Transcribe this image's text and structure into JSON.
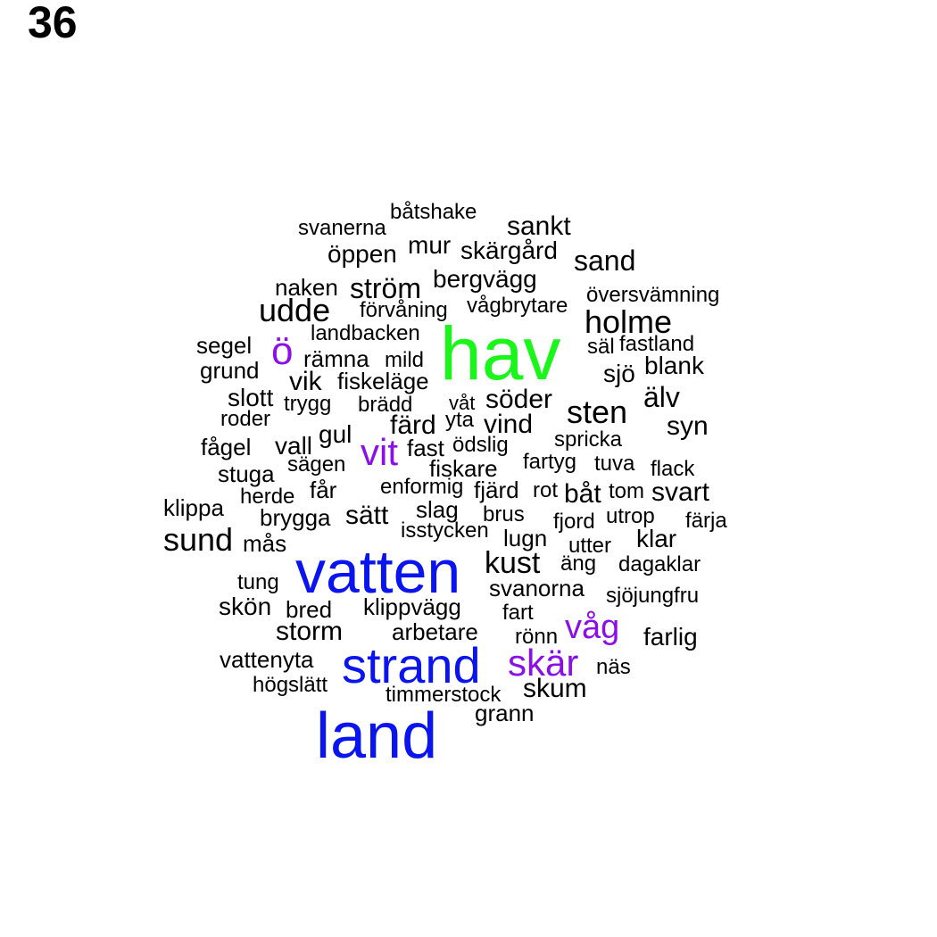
{
  "panel_number": "36",
  "colors": {
    "black": "#000000",
    "purple": "#8a0fe8",
    "blue": "#0a14ee",
    "green": "#1af51a"
  },
  "words": [
    {
      "text": "båtshake",
      "color": "black"
    },
    {
      "text": "svanerna",
      "color": "black"
    },
    {
      "text": "sankt",
      "color": "black"
    },
    {
      "text": "mur",
      "color": "black"
    },
    {
      "text": "öppen",
      "color": "black"
    },
    {
      "text": "skärgård",
      "color": "black"
    },
    {
      "text": "sand",
      "color": "black"
    },
    {
      "text": "bergvägg",
      "color": "black"
    },
    {
      "text": "naken",
      "color": "black"
    },
    {
      "text": "ström",
      "color": "black"
    },
    {
      "text": "översvämning",
      "color": "black"
    },
    {
      "text": "udde",
      "color": "black"
    },
    {
      "text": "förvåning",
      "color": "black"
    },
    {
      "text": "vågbrytare",
      "color": "black"
    },
    {
      "text": "holme",
      "color": "black"
    },
    {
      "text": "landbacken",
      "color": "black"
    },
    {
      "text": "hav",
      "color": "green"
    },
    {
      "text": "segel",
      "color": "black"
    },
    {
      "text": "ö",
      "color": "purple"
    },
    {
      "text": "säl",
      "color": "black"
    },
    {
      "text": "fastland",
      "color": "black"
    },
    {
      "text": "rämna",
      "color": "black"
    },
    {
      "text": "mild",
      "color": "black"
    },
    {
      "text": "grund",
      "color": "black"
    },
    {
      "text": "blank",
      "color": "black"
    },
    {
      "text": "sjö",
      "color": "black"
    },
    {
      "text": "vik",
      "color": "black"
    },
    {
      "text": "fiskeläge",
      "color": "black"
    },
    {
      "text": "slott",
      "color": "black"
    },
    {
      "text": "älv",
      "color": "black"
    },
    {
      "text": "söder",
      "color": "black"
    },
    {
      "text": "trygg",
      "color": "black"
    },
    {
      "text": "brädd",
      "color": "black"
    },
    {
      "text": "våt",
      "color": "black"
    },
    {
      "text": "sten",
      "color": "black"
    },
    {
      "text": "roder",
      "color": "black"
    },
    {
      "text": "yta",
      "color": "black"
    },
    {
      "text": "färd",
      "color": "black"
    },
    {
      "text": "vind",
      "color": "black"
    },
    {
      "text": "syn",
      "color": "black"
    },
    {
      "text": "gul",
      "color": "black"
    },
    {
      "text": "fågel",
      "color": "black"
    },
    {
      "text": "vall",
      "color": "black"
    },
    {
      "text": "vit",
      "color": "purple"
    },
    {
      "text": "fast",
      "color": "black"
    },
    {
      "text": "ödslig",
      "color": "black"
    },
    {
      "text": "spricka",
      "color": "black"
    },
    {
      "text": "sägen",
      "color": "black"
    },
    {
      "text": "stuga",
      "color": "black"
    },
    {
      "text": "fiskare",
      "color": "black"
    },
    {
      "text": "fartyg",
      "color": "black"
    },
    {
      "text": "tuva",
      "color": "black"
    },
    {
      "text": "flack",
      "color": "black"
    },
    {
      "text": "får",
      "color": "black"
    },
    {
      "text": "enformig",
      "color": "black"
    },
    {
      "text": "fjärd",
      "color": "black"
    },
    {
      "text": "rot",
      "color": "black"
    },
    {
      "text": "båt",
      "color": "black"
    },
    {
      "text": "tom",
      "color": "black"
    },
    {
      "text": "svart",
      "color": "black"
    },
    {
      "text": "herde",
      "color": "black"
    },
    {
      "text": "klippa",
      "color": "black"
    },
    {
      "text": "slag",
      "color": "black"
    },
    {
      "text": "brygga",
      "color": "black"
    },
    {
      "text": "sätt",
      "color": "black"
    },
    {
      "text": "brus",
      "color": "black"
    },
    {
      "text": "utrop",
      "color": "black"
    },
    {
      "text": "färja",
      "color": "black"
    },
    {
      "text": "fjord",
      "color": "black"
    },
    {
      "text": "isstycken",
      "color": "black"
    },
    {
      "text": "sund",
      "color": "black"
    },
    {
      "text": "lugn",
      "color": "black"
    },
    {
      "text": "klar",
      "color": "black"
    },
    {
      "text": "mås",
      "color": "black"
    },
    {
      "text": "utter",
      "color": "black"
    },
    {
      "text": "vatten",
      "color": "blue"
    },
    {
      "text": "kust",
      "color": "black"
    },
    {
      "text": "äng",
      "color": "black"
    },
    {
      "text": "dagaklar",
      "color": "black"
    },
    {
      "text": "tung",
      "color": "black"
    },
    {
      "text": "svanorna",
      "color": "black"
    },
    {
      "text": "sjöjungfru",
      "color": "black"
    },
    {
      "text": "skön",
      "color": "black"
    },
    {
      "text": "bred",
      "color": "black"
    },
    {
      "text": "klippvägg",
      "color": "black"
    },
    {
      "text": "fart",
      "color": "black"
    },
    {
      "text": "våg",
      "color": "purple"
    },
    {
      "text": "storm",
      "color": "black"
    },
    {
      "text": "arbetare",
      "color": "black"
    },
    {
      "text": "rönn",
      "color": "black"
    },
    {
      "text": "farlig",
      "color": "black"
    },
    {
      "text": "vattenyta",
      "color": "black"
    },
    {
      "text": "strand",
      "color": "blue"
    },
    {
      "text": "skär",
      "color": "purple"
    },
    {
      "text": "näs",
      "color": "black"
    },
    {
      "text": "högslätt",
      "color": "black"
    },
    {
      "text": "timmerstock",
      "color": "black"
    },
    {
      "text": "skum",
      "color": "black"
    },
    {
      "text": "grann",
      "color": "black"
    },
    {
      "text": "land",
      "color": "blue"
    }
  ]
}
